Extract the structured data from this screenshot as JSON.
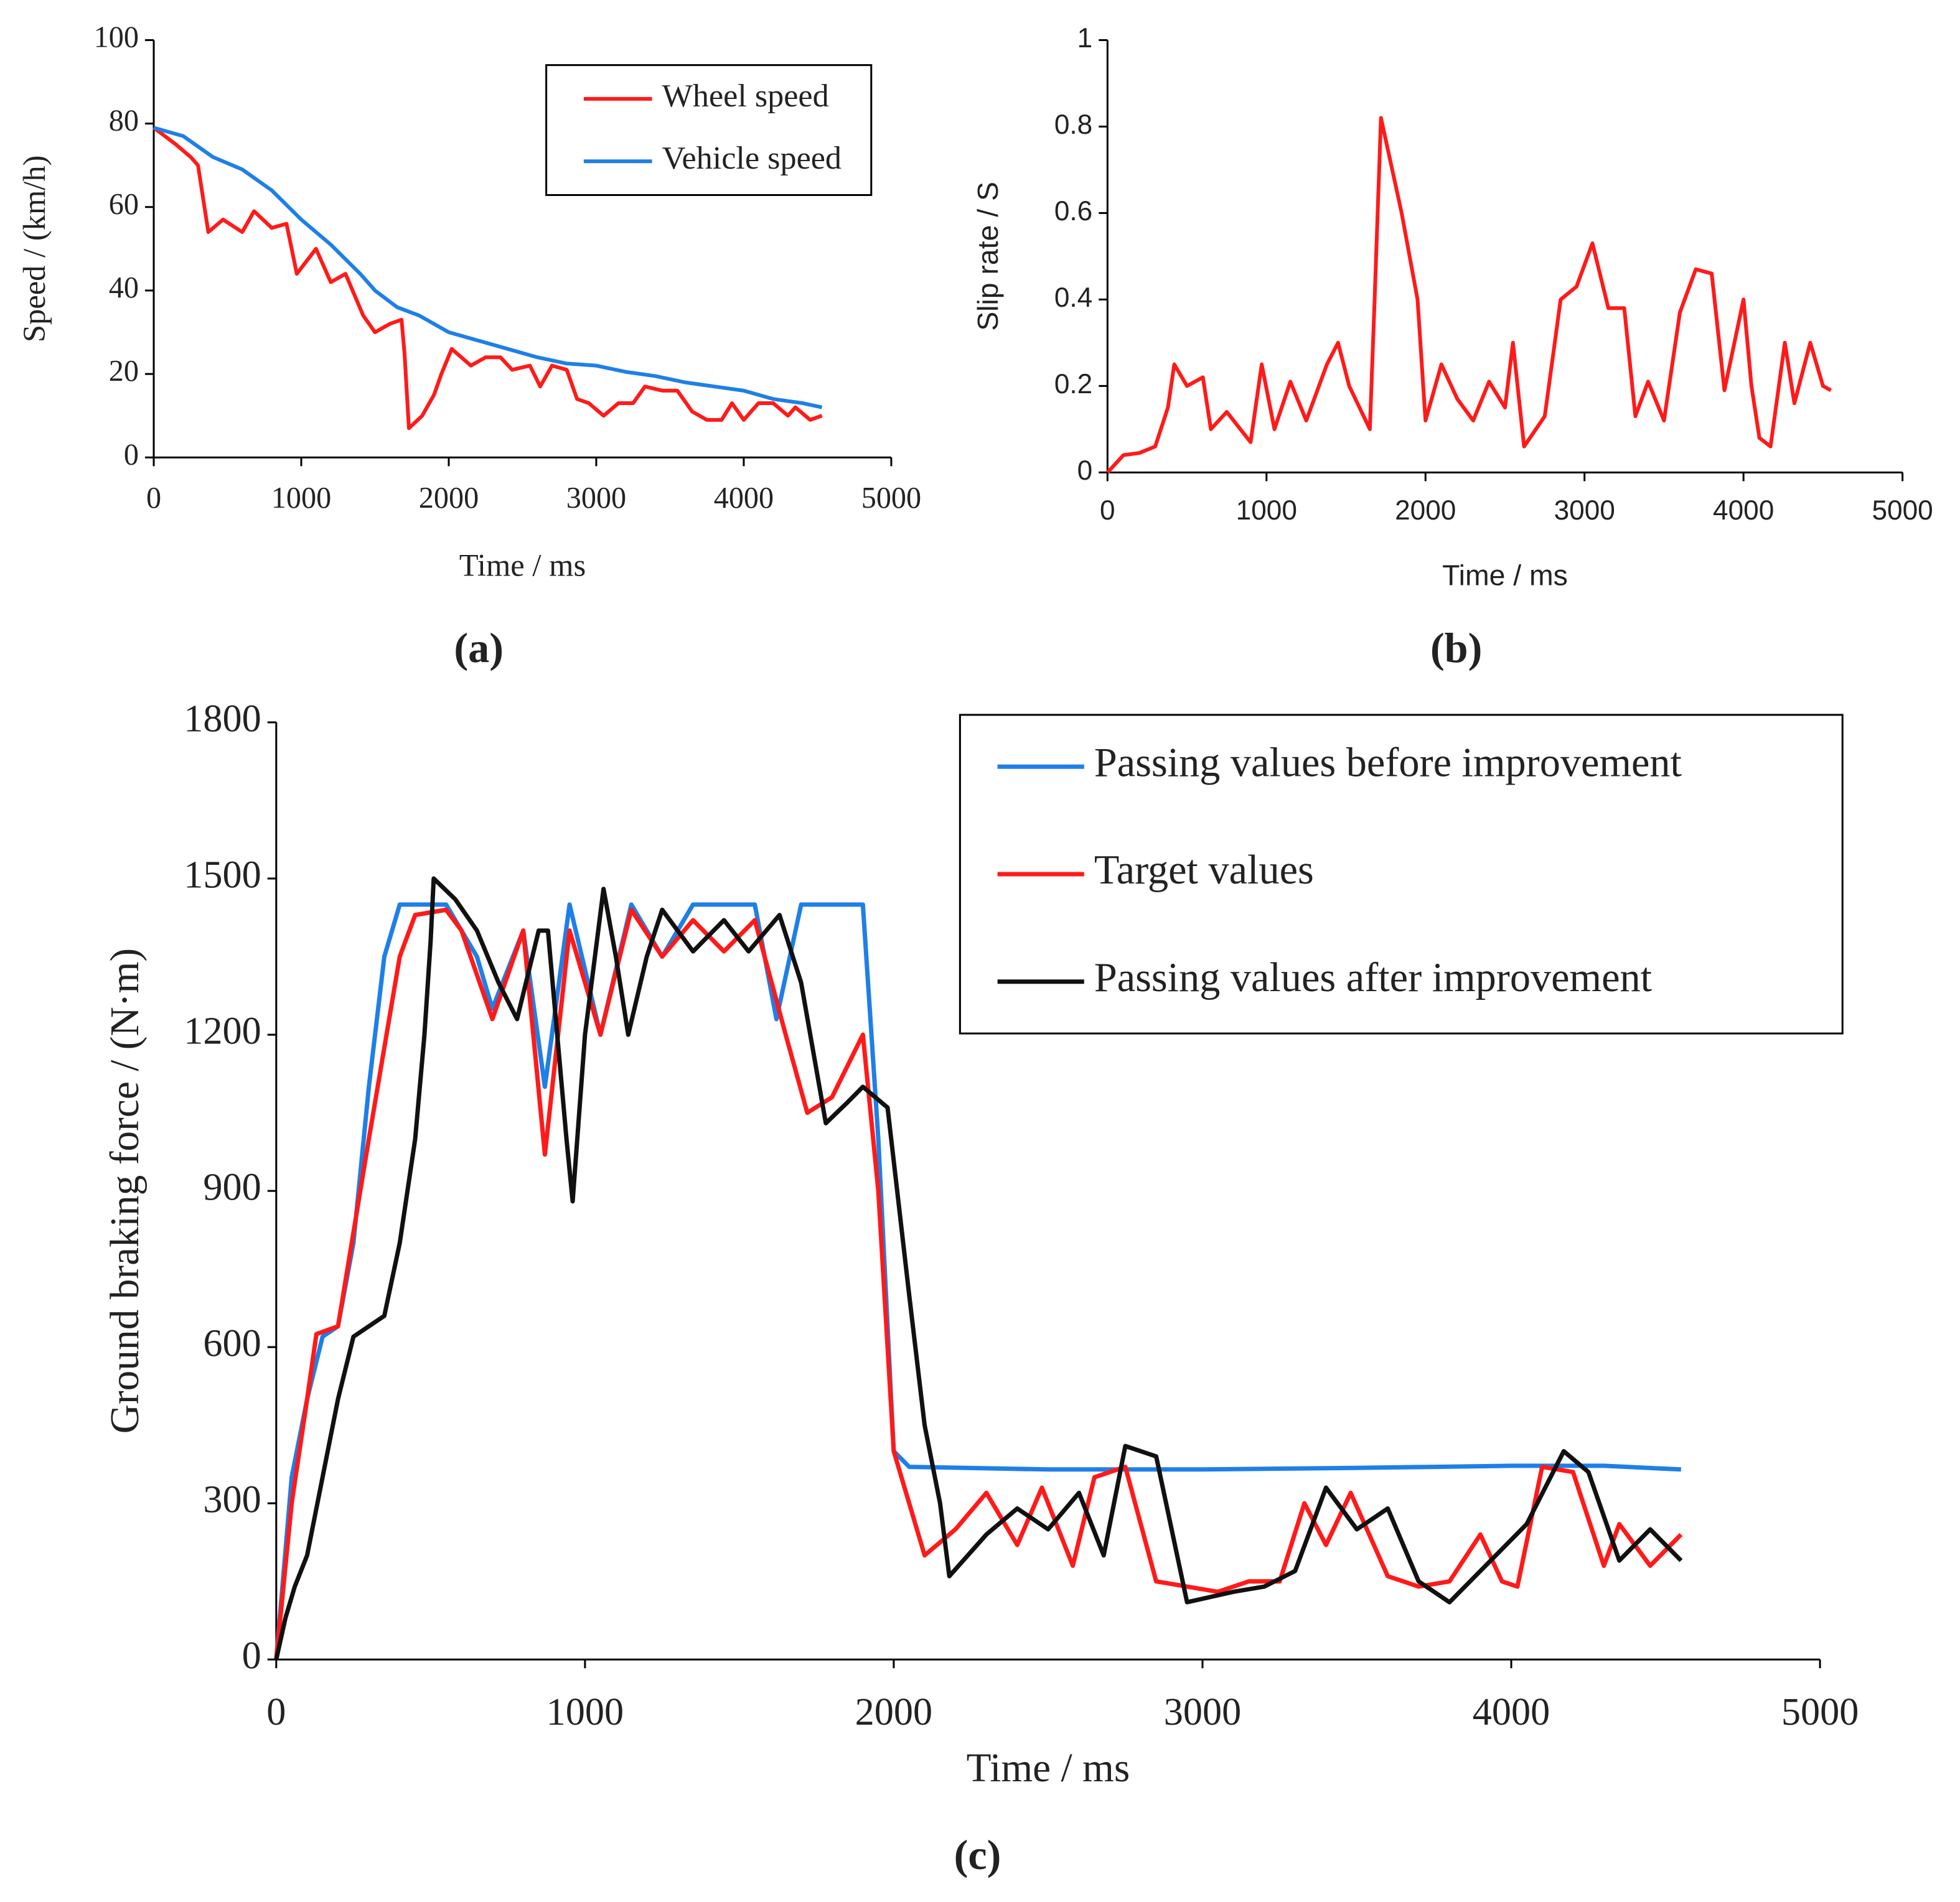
{
  "chart_data": [
    {
      "type": "line",
      "caption": "(a)",
      "xlabel": "Time / ms",
      "ylabel": "Speed / (km/h)",
      "xlim": [
        0,
        5000
      ],
      "xticks": [
        0,
        1000,
        2000,
        3000,
        4000,
        5000
      ],
      "ylim": [
        0,
        100
      ],
      "yticks": [
        0,
        20,
        40,
        60,
        80,
        100
      ],
      "legend": "upper right",
      "series": [
        {
          "name": "Wheel speed",
          "color": "#ff1a1a",
          "x": [
            0,
            150,
            250,
            300,
            370,
            470,
            600,
            680,
            800,
            900,
            970,
            1100,
            1200,
            1300,
            1420,
            1500,
            1600,
            1680,
            1700,
            1730,
            1820,
            1900,
            1950,
            2020,
            2150,
            2250,
            2350,
            2430,
            2550,
            2620,
            2700,
            2800,
            2870,
            2950,
            3050,
            3150,
            3250,
            3330,
            3450,
            3550,
            3650,
            3750,
            3850,
            3920,
            4000,
            4100,
            4200,
            4300,
            4350,
            4450,
            4530
          ],
          "values": [
            79,
            75,
            72,
            70,
            54,
            57,
            54,
            59,
            55,
            56,
            44,
            50,
            42,
            44,
            34,
            30,
            32,
            33,
            25,
            7,
            10,
            15,
            20,
            26,
            22,
            24,
            24,
            21,
            22,
            17,
            22,
            21,
            14,
            13,
            10,
            13,
            13,
            17,
            16,
            16,
            11,
            9,
            9,
            13,
            9,
            13,
            13,
            10,
            12,
            9,
            10
          ]
        },
        {
          "name": "Vehicle speed",
          "color": "#1e7fe8",
          "x": [
            0,
            200,
            400,
            600,
            800,
            1000,
            1200,
            1400,
            1500,
            1650,
            1800,
            2000,
            2200,
            2400,
            2600,
            2800,
            3000,
            3200,
            3400,
            3600,
            3800,
            4000,
            4200,
            4400,
            4530
          ],
          "values": [
            79,
            77,
            72,
            69,
            64,
            57,
            51,
            44,
            40,
            36,
            34,
            30,
            28,
            26,
            24,
            22.5,
            22,
            20.5,
            19.5,
            18,
            17,
            16,
            14,
            13,
            12
          ]
        }
      ]
    },
    {
      "type": "line",
      "caption": "(b)",
      "xlabel": "Time / ms",
      "ylabel": "Slip rate / S",
      "xlim": [
        0,
        5000
      ],
      "xticks": [
        0,
        1000,
        2000,
        3000,
        4000,
        5000
      ],
      "ylim": [
        0,
        1
      ],
      "yticks": [
        0,
        0.2,
        0.4,
        0.6,
        0.8,
        1
      ],
      "series": [
        {
          "color": "#ff1a1a",
          "x": [
            0,
            100,
            200,
            300,
            380,
            420,
            500,
            600,
            650,
            750,
            900,
            970,
            1050,
            1150,
            1250,
            1380,
            1450,
            1520,
            1650,
            1680,
            1720,
            1850,
            1950,
            2000,
            2100,
            2200,
            2300,
            2400,
            2500,
            2550,
            2620,
            2750,
            2850,
            2950,
            3050,
            3150,
            3250,
            3320,
            3400,
            3500,
            3600,
            3700,
            3800,
            3880,
            4000,
            4050,
            4100,
            4170,
            4260,
            4320,
            4420,
            4500,
            4550
          ],
          "values": [
            0,
            0.04,
            0.045,
            0.06,
            0.15,
            0.25,
            0.2,
            0.22,
            0.1,
            0.14,
            0.07,
            0.25,
            0.1,
            0.21,
            0.12,
            0.25,
            0.3,
            0.2,
            0.1,
            0.4,
            0.82,
            0.6,
            0.4,
            0.12,
            0.25,
            0.17,
            0.12,
            0.21,
            0.15,
            0.3,
            0.06,
            0.13,
            0.4,
            0.43,
            0.53,
            0.38,
            0.38,
            0.13,
            0.21,
            0.12,
            0.37,
            0.47,
            0.46,
            0.19,
            0.4,
            0.2,
            0.08,
            0.06,
            0.3,
            0.16,
            0.3,
            0.2,
            0.19
          ]
        }
      ]
    },
    {
      "type": "line",
      "caption": "(c)",
      "xlabel": "Time / ms",
      "ylabel": "Ground braking force / (N·m)",
      "xlim": [
        0,
        5000
      ],
      "xticks": [
        0,
        1000,
        2000,
        3000,
        4000,
        5000
      ],
      "ylim": [
        0,
        1800
      ],
      "yticks": [
        0,
        300,
        600,
        900,
        1200,
        1500,
        1800
      ],
      "legend": "upper right",
      "series": [
        {
          "name": "Passing values before improvement",
          "color": "#1e7fe8",
          "x": [
            0,
            50,
            100,
            150,
            200,
            250,
            300,
            350,
            400,
            550,
            650,
            700,
            800,
            870,
            950,
            1050,
            1150,
            1250,
            1350,
            1550,
            1620,
            1700,
            1900,
            1950,
            2000,
            2050,
            2500,
            3000,
            3500,
            4000,
            4300,
            4550
          ],
          "values": [
            0,
            350,
            500,
            620,
            640,
            800,
            1100,
            1350,
            1450,
            1450,
            1350,
            1250,
            1400,
            1100,
            1450,
            1200,
            1450,
            1350,
            1450,
            1450,
            1230,
            1450,
            1450,
            1000,
            400,
            370,
            365,
            365,
            368,
            372,
            372,
            365
          ]
        },
        {
          "name": "Target values",
          "color": "#ff1a1a",
          "x": [
            0,
            50,
            100,
            130,
            200,
            300,
            400,
            450,
            550,
            600,
            700,
            800,
            870,
            950,
            1050,
            1150,
            1250,
            1350,
            1450,
            1550,
            1650,
            1720,
            1800,
            1900,
            1950,
            2000,
            2050,
            2100,
            2200,
            2300,
            2400,
            2480,
            2580,
            2650,
            2750,
            2850,
            2950,
            3050,
            3150,
            3250,
            3330,
            3400,
            3480,
            3600,
            3700,
            3800,
            3900,
            3970,
            4020,
            4100,
            4200,
            4300,
            4350,
            4450,
            4550
          ],
          "values": [
            0,
            300,
            500,
            625,
            640,
            1000,
            1350,
            1430,
            1440,
            1400,
            1230,
            1400,
            970,
            1400,
            1200,
            1440,
            1350,
            1420,
            1360,
            1420,
            1200,
            1050,
            1080,
            1200,
            900,
            400,
            300,
            200,
            250,
            320,
            220,
            330,
            180,
            350,
            370,
            150,
            140,
            130,
            150,
            150,
            300,
            220,
            320,
            160,
            140,
            150,
            240,
            150,
            140,
            370,
            360,
            180,
            260,
            180,
            240
          ]
        },
        {
          "name": "Passing values after improvement",
          "color": "#111111",
          "x": [
            0,
            30,
            60,
            100,
            150,
            200,
            250,
            350,
            400,
            450,
            480,
            500,
            510,
            580,
            650,
            720,
            780,
            850,
            880,
            940,
            960,
            1000,
            1060,
            1100,
            1140,
            1200,
            1250,
            1300,
            1350,
            1450,
            1530,
            1630,
            1700,
            1780,
            1850,
            1900,
            1980,
            2050,
            2100,
            2150,
            2180,
            2300,
            2400,
            2500,
            2600,
            2680,
            2750,
            2850,
            2950,
            3100,
            3200,
            3300,
            3400,
            3500,
            3600,
            3700,
            3800,
            3950,
            4050,
            4170,
            4250,
            4350,
            4450,
            4550
          ],
          "values": [
            0,
            80,
            140,
            200,
            350,
            500,
            620,
            660,
            800,
            1000,
            1200,
            1380,
            1500,
            1460,
            1400,
            1300,
            1230,
            1400,
            1400,
            1000,
            880,
            1200,
            1480,
            1350,
            1200,
            1350,
            1440,
            1400,
            1360,
            1420,
            1360,
            1430,
            1300,
            1030,
            1070,
            1100,
            1060,
            700,
            450,
            300,
            160,
            240,
            290,
            250,
            320,
            200,
            410,
            390,
            110,
            130,
            140,
            170,
            330,
            250,
            290,
            150,
            110,
            200,
            260,
            400,
            360,
            190,
            250,
            190
          ]
        }
      ]
    }
  ]
}
